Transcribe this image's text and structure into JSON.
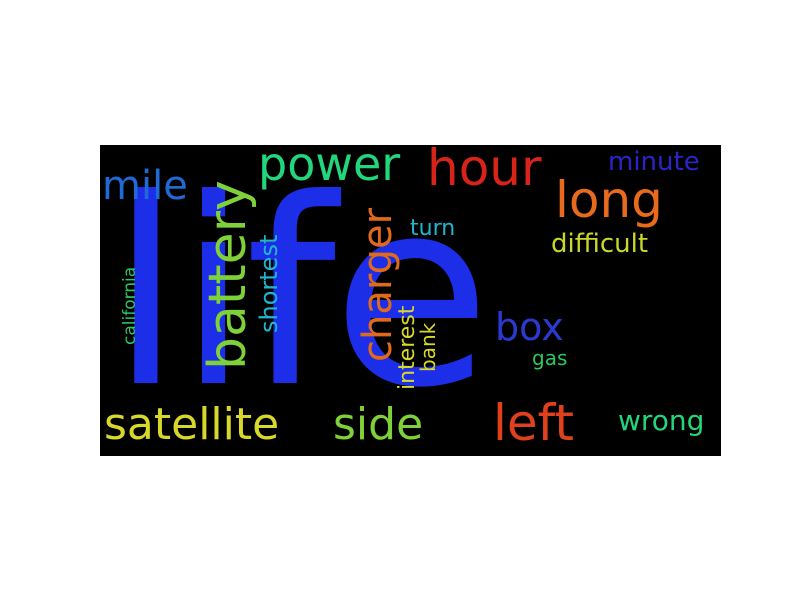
{
  "wordcloud": {
    "background": "#000000",
    "words": [
      {
        "id": "life",
        "text": "life",
        "color": "#1d2ee8",
        "orientation": "horizontal"
      },
      {
        "id": "battery",
        "text": "battery",
        "color": "#7fd13a",
        "orientation": "vertical"
      },
      {
        "id": "power",
        "text": "power",
        "color": "#22d67c",
        "orientation": "horizontal"
      },
      {
        "id": "hour",
        "text": "hour",
        "color": "#d82318",
        "orientation": "horizontal"
      },
      {
        "id": "long",
        "text": "long",
        "color": "#e86a1c",
        "orientation": "horizontal"
      },
      {
        "id": "minute",
        "text": "minute",
        "color": "#2a24c9",
        "orientation": "horizontal"
      },
      {
        "id": "mile",
        "text": "mile",
        "color": "#1f6ad6",
        "orientation": "horizontal"
      },
      {
        "id": "charger",
        "text": "charger",
        "color": "#e06a1c",
        "orientation": "vertical"
      },
      {
        "id": "shortest",
        "text": "shortest",
        "color": "#22b4d0",
        "orientation": "vertical"
      },
      {
        "id": "turn",
        "text": "turn",
        "color": "#22b4d0",
        "orientation": "horizontal"
      },
      {
        "id": "difficult",
        "text": "difficult",
        "color": "#c8d82a",
        "orientation": "horizontal"
      },
      {
        "id": "california",
        "text": "california",
        "color": "#2ac95e",
        "orientation": "vertical"
      },
      {
        "id": "box",
        "text": "box",
        "color": "#2a3ad0",
        "orientation": "horizontal"
      },
      {
        "id": "interest",
        "text": "interest",
        "color": "#d8d82a",
        "orientation": "vertical"
      },
      {
        "id": "bank",
        "text": "bank",
        "color": "#d8d82a",
        "orientation": "vertical"
      },
      {
        "id": "gas",
        "text": "gas",
        "color": "#2ac95e",
        "orientation": "horizontal"
      },
      {
        "id": "satellite",
        "text": "satellite",
        "color": "#d8d82a",
        "orientation": "horizontal"
      },
      {
        "id": "side",
        "text": "side",
        "color": "#7fd13a",
        "orientation": "horizontal"
      },
      {
        "id": "left",
        "text": "left",
        "color": "#e0401c",
        "orientation": "horizontal"
      },
      {
        "id": "wrong",
        "text": "wrong",
        "color": "#22d67c",
        "orientation": "horizontal"
      }
    ]
  }
}
